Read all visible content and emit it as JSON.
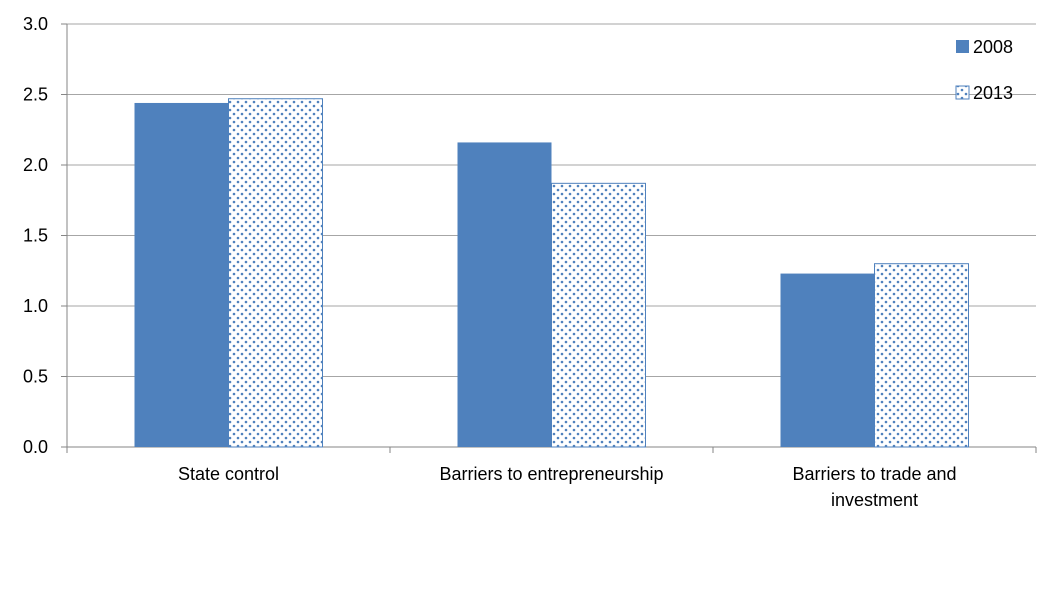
{
  "chart_data": {
    "type": "bar",
    "title": "",
    "xlabel": "",
    "ylabel": "",
    "categories": [
      [
        "State control"
      ],
      [
        "Barriers to entrepreneurship"
      ],
      [
        "Barriers to trade and",
        "investment"
      ]
    ],
    "series": [
      {
        "name": "2008",
        "values": [
          2.44,
          2.16,
          1.23
        ],
        "color": "#4f81bd",
        "pattern": "solid"
      },
      {
        "name": "2013",
        "values": [
          2.47,
          1.87,
          1.3
        ],
        "color": "#4f81bd",
        "pattern": "dotted"
      }
    ],
    "ylim": [
      0,
      3.0
    ],
    "yticks": [
      0.0,
      0.5,
      1.0,
      1.5,
      2.0,
      2.5,
      3.0
    ],
    "ytick_labels": [
      "0.0",
      "0.5",
      "1.0",
      "1.5",
      "2.0",
      "2.5",
      "3.0"
    ],
    "grid": true,
    "legend_position": "top-right"
  }
}
